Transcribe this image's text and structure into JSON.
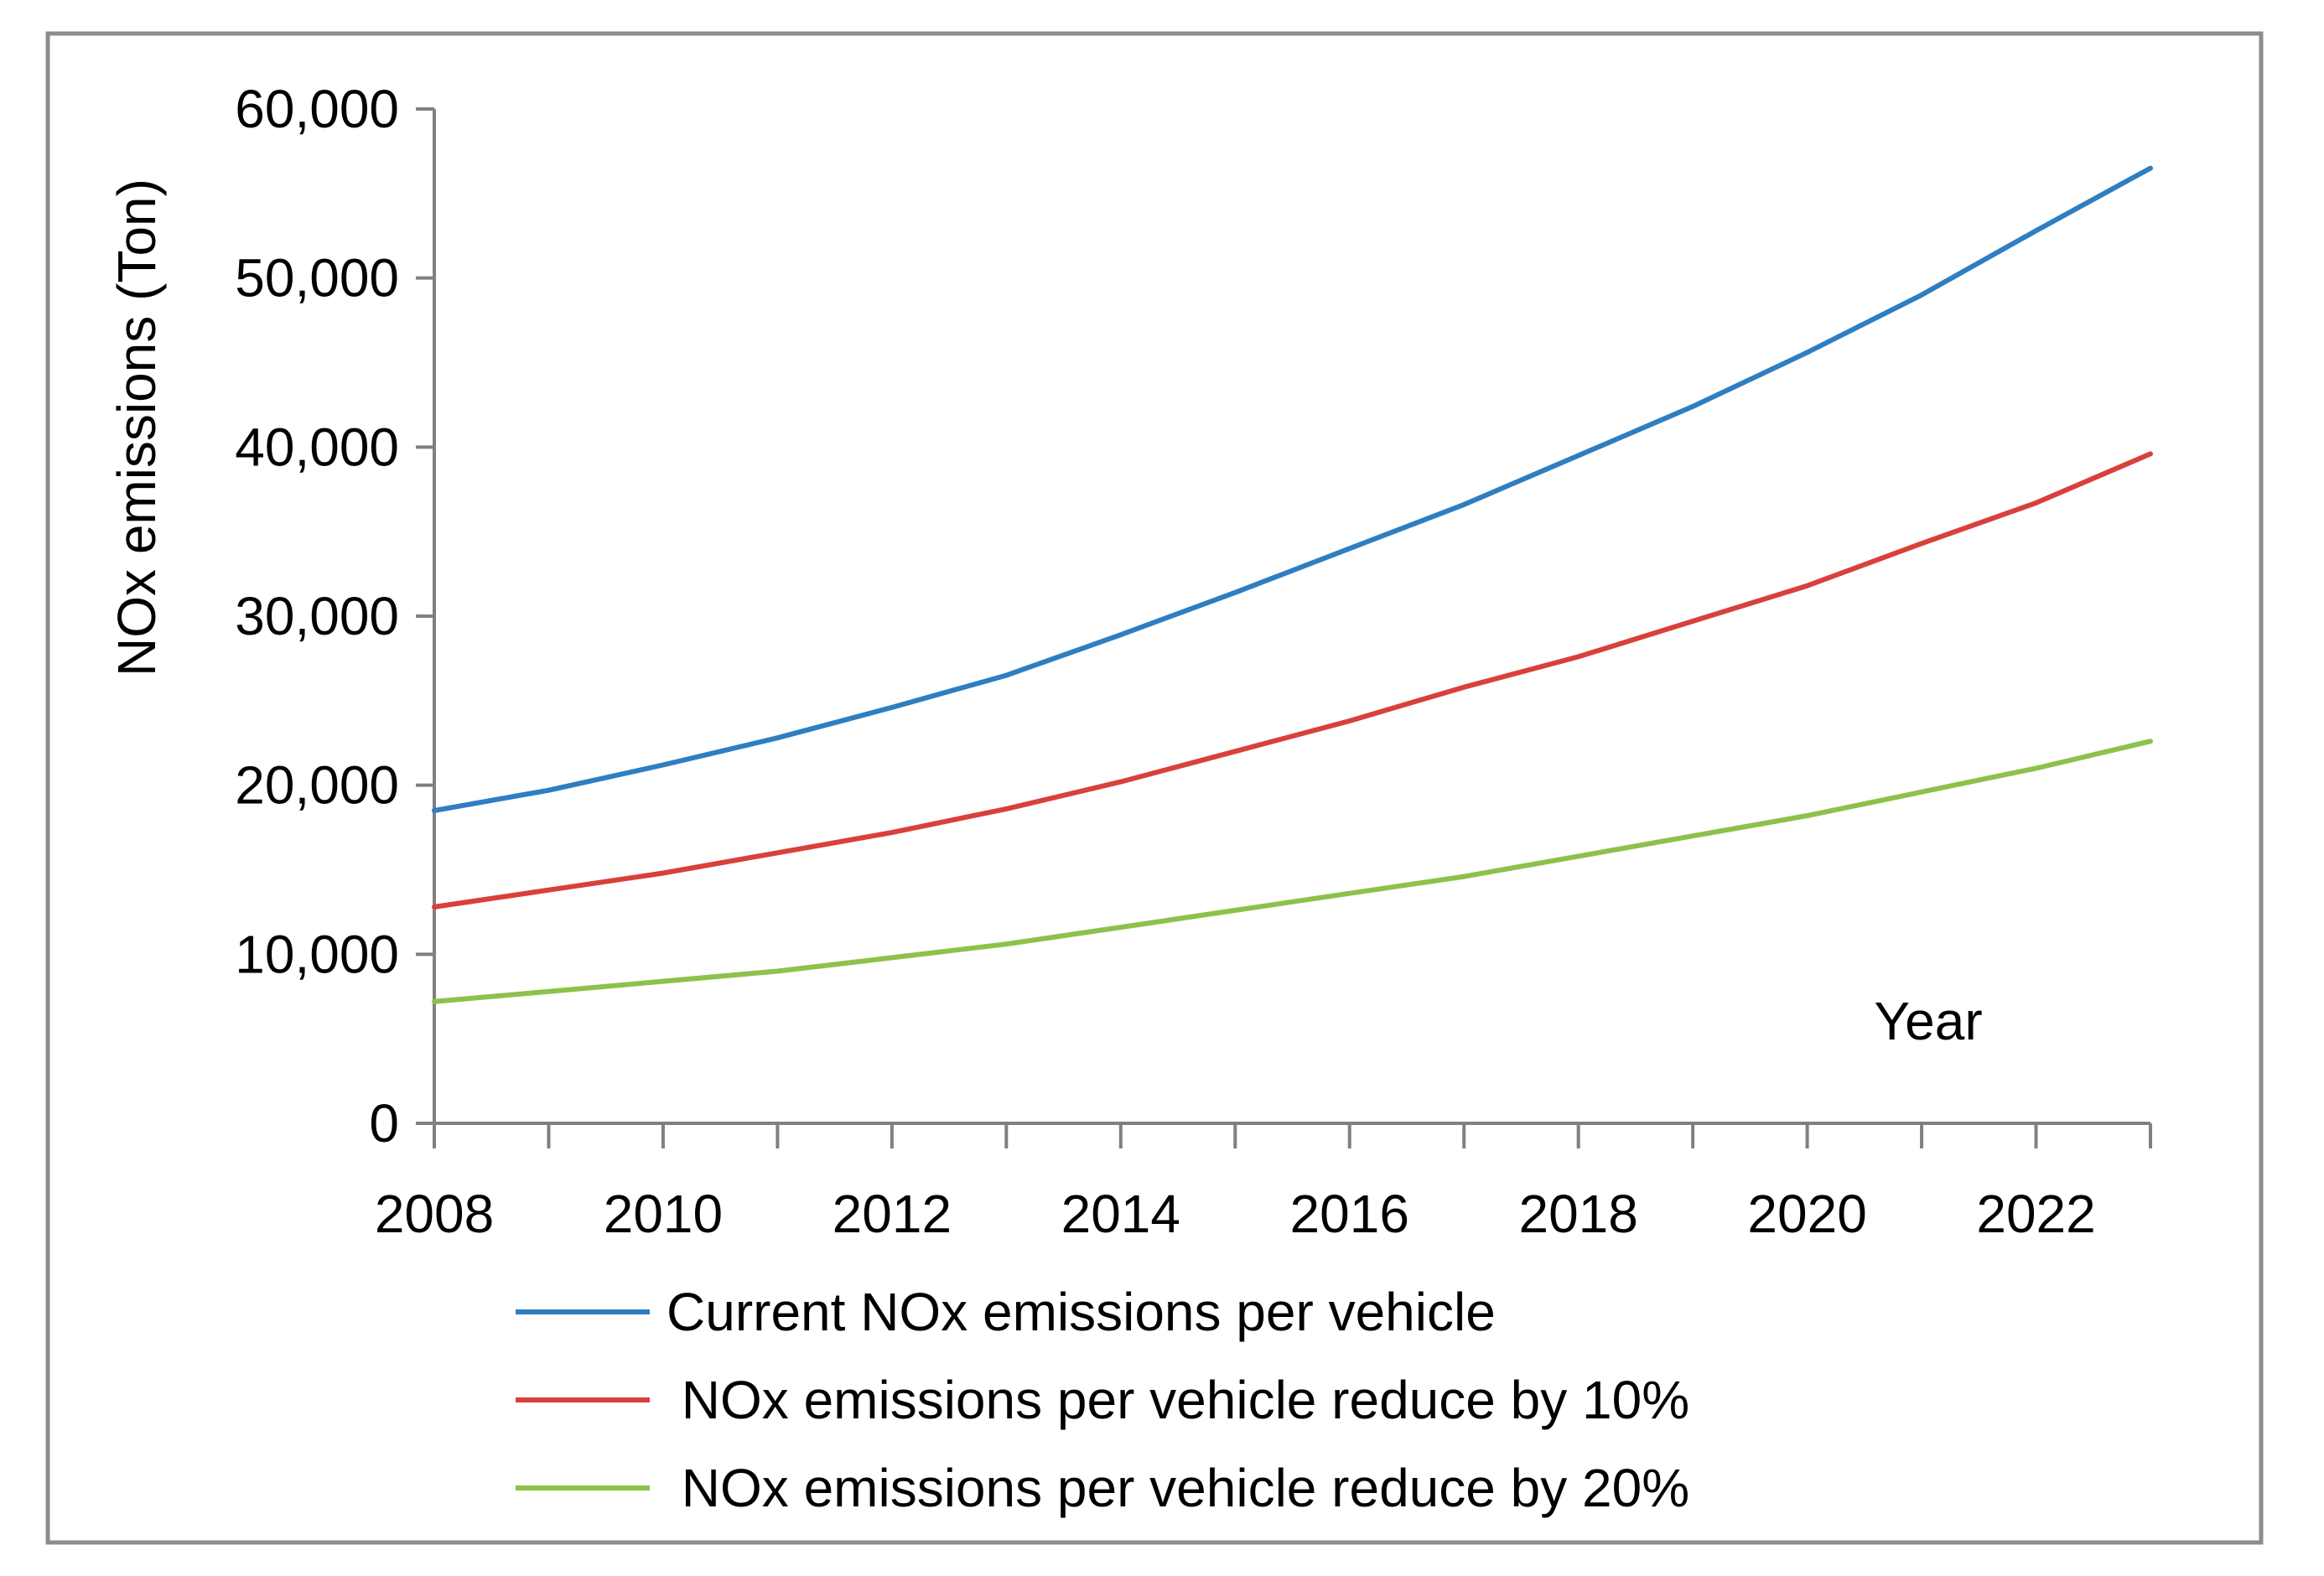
{
  "chart_data": {
    "type": "line",
    "title": "",
    "xlabel": "Year",
    "ylabel": "NOx emissions (Ton)",
    "x": [
      2008,
      2009,
      2010,
      2011,
      2012,
      2013,
      2014,
      2015,
      2016,
      2017,
      2018,
      2019,
      2020,
      2021,
      2022,
      2023
    ],
    "xticks": [
      "2008",
      "2010",
      "2012",
      "2014",
      "2016",
      "2018",
      "2020",
      "2022"
    ],
    "yticks": [
      "0",
      "10,000",
      "20,000",
      "30,000",
      "40,000",
      "50,000",
      "60,000"
    ],
    "xlim": [
      2008,
      2023
    ],
    "ylim": [
      0,
      60000
    ],
    "grid": false,
    "legend_position": "bottom",
    "series": [
      {
        "name": "Current NOx emissions per vehicle",
        "color": "#2E7EC1",
        "values": [
          18500,
          19700,
          21200,
          22800,
          24600,
          26500,
          28900,
          31400,
          34000,
          36600,
          39500,
          42400,
          45600,
          49000,
          52800,
          56500
        ]
      },
      {
        "name": " NOx emissions per vehicle reduce by 10%",
        "color": "#D9403C",
        "values": [
          12800,
          13800,
          14800,
          16000,
          17200,
          18600,
          20200,
          22000,
          23800,
          25800,
          27600,
          29700,
          31800,
          34300,
          36700,
          39600
        ]
      },
      {
        "name": " NOx emissions per vehicle reduce by 20%",
        "color": "#8CC24A",
        "values": [
          7200,
          7800,
          8400,
          9000,
          9800,
          10600,
          11600,
          12600,
          13600,
          14600,
          15800,
          17000,
          18200,
          19600,
          21000,
          22600
        ]
      }
    ]
  }
}
